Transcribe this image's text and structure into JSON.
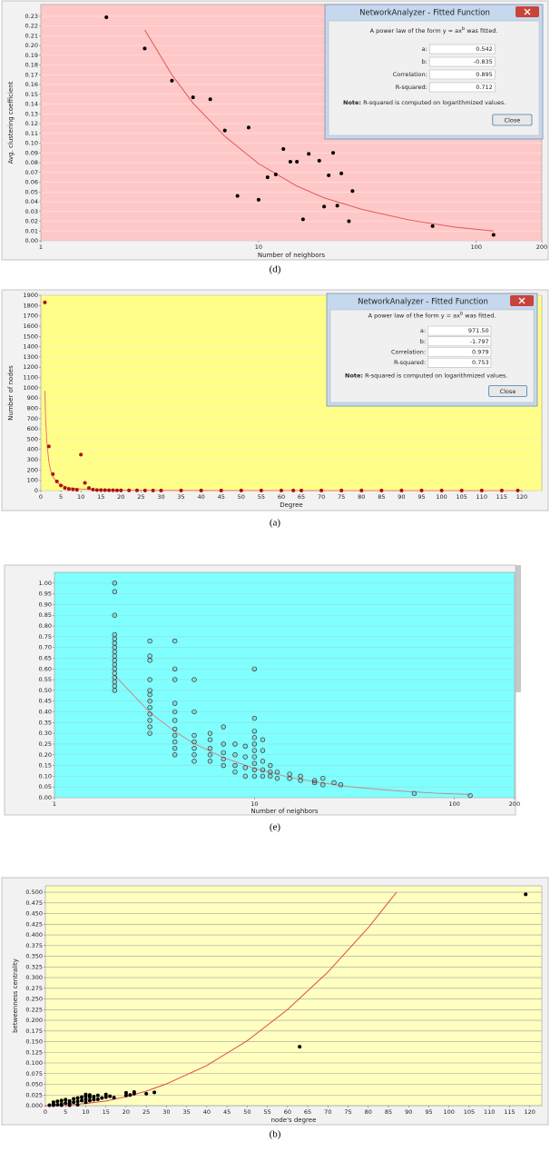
{
  "chart_data": [
    {
      "type": "scatter",
      "caption": "(d)",
      "x_label": "Number of neighbors",
      "y_label": "Avg. clustering coefficient",
      "xscale": "log",
      "xlim": [
        1,
        200
      ],
      "xticks": [
        1,
        10,
        100,
        200
      ],
      "ylim": [
        0,
        0.242
      ],
      "yticks": [
        {
          "value": 0,
          "label": "0.00"
        },
        0.01,
        0.02,
        0.03,
        0.04,
        0.05,
        0.06,
        0.07,
        0.08,
        0.09,
        {
          "value": 0.1,
          "label": "0.10"
        },
        0.11,
        0.12,
        0.13,
        0.14,
        0.15,
        0.16,
        0.17,
        0.18,
        0.19,
        {
          "value": 0.2,
          "label": "0.20"
        },
        0.21,
        0.22,
        0.23
      ],
      "grid": true,
      "grid_color": "#ffe4e4",
      "background": "#ffc8c8",
      "point_color": "#000000",
      "point_style": "filled",
      "points": {
        "x": [
          2,
          3,
          4,
          5,
          6,
          7,
          9,
          8,
          10,
          11,
          12,
          13,
          14,
          15,
          16,
          17,
          19,
          20,
          21,
          22,
          23,
          24,
          26,
          27,
          63,
          120
        ],
        "y": [
          0.229,
          0.197,
          0.164,
          0.147,
          0.145,
          0.113,
          0.116,
          0.046,
          0.042,
          0.065,
          0.068,
          0.094,
          0.081,
          0.081,
          0.022,
          0.089,
          0.082,
          0.035,
          0.067,
          0.09,
          0.036,
          0.069,
          0.02,
          0.051,
          0.015,
          0.006
        ]
      },
      "curve_color": "#e05858",
      "curve": {
        "x": [
          3,
          4,
          5,
          7,
          10,
          15,
          20,
          30,
          50,
          80,
          120
        ],
        "y": [
          0.216,
          0.17,
          0.141,
          0.107,
          0.079,
          0.056,
          0.044,
          0.032,
          0.021,
          0.014,
          0.01
        ]
      },
      "dialog": {
        "title": "NetworkAnalyzer - Fitted Function",
        "intro_before": "A power law of the form ",
        "formula": "y  =  ax",
        "formula_exp": "b",
        "intro_after": " was fitted.",
        "fields": [
          {
            "label": "a:",
            "value": 0.542
          },
          {
            "label": "b:",
            "value": -0.835
          },
          {
            "label": "Correlation:",
            "value": 0.895
          },
          {
            "label": "R-squared:",
            "value": 0.712
          }
        ],
        "note_label": "Note:",
        "note": " R-squared is computed on logarithmized values.",
        "button": "Close"
      }
    },
    {
      "type": "scatter",
      "caption": "(a)",
      "x_label": "Degree",
      "y_label": "Number of nodes",
      "xscale": "linear",
      "xlim": [
        0,
        125
      ],
      "xticks": [
        0,
        5,
        10,
        15,
        20,
        25,
        30,
        35,
        40,
        45,
        50,
        55,
        60,
        65,
        70,
        75,
        80,
        85,
        90,
        95,
        100,
        105,
        110,
        115,
        120
      ],
      "ylim": [
        0,
        1900
      ],
      "yticks": [
        0,
        100,
        200,
        300,
        400,
        500,
        600,
        700,
        800,
        900,
        1000,
        1100,
        1200,
        1300,
        1400,
        1500,
        1600,
        1700,
        1800,
        1900
      ],
      "grid": true,
      "grid_color": "#f4f4b0",
      "background": "#ffff88",
      "point_color": "#b01010",
      "point_style": "filled",
      "points": {
        "x": [
          1,
          2,
          3,
          4,
          5,
          6,
          7,
          8,
          9,
          10,
          11,
          12,
          13,
          14,
          15,
          16,
          17,
          18,
          19,
          20,
          22,
          24,
          26,
          28,
          30,
          35,
          40,
          45,
          50,
          55,
          60,
          63,
          65,
          70,
          75,
          80,
          85,
          90,
          95,
          100,
          105,
          110,
          115,
          119
        ],
        "y": [
          1830,
          430,
          160,
          90,
          50,
          25,
          15,
          12,
          8,
          350,
          75,
          25,
          10,
          6,
          5,
          4,
          3,
          3,
          2,
          2,
          2,
          2,
          1,
          1,
          1,
          1,
          1,
          1,
          1,
          1,
          1,
          1,
          1,
          1,
          1,
          1,
          1,
          1,
          1,
          1,
          1,
          1,
          1,
          1
        ]
      },
      "curve_color": "#f07070",
      "curve": {
        "x": [
          1,
          1.2,
          1.5,
          2,
          2.5,
          3,
          4,
          5,
          7,
          10,
          15,
          20,
          30,
          50,
          80,
          120
        ],
        "y": [
          971.5,
          700,
          469,
          280,
          187,
          135,
          80,
          54,
          29,
          15.5,
          7.5,
          4.5,
          2.2,
          0.9,
          0.4,
          0.2
        ]
      },
      "dialog": {
        "title": "NetworkAnalyzer - Fitted Function",
        "intro_before": "A power law of the form ",
        "formula": "y  =  ax",
        "formula_exp": "b",
        "intro_after": " was fitted.",
        "fields": [
          {
            "label": "a:",
            "value": {
              "value": 971.5,
              "label": "971.50"
            }
          },
          {
            "label": "b:",
            "value": -1.797
          },
          {
            "label": "Correlation:",
            "value": 0.979
          },
          {
            "label": "R-squared:",
            "value": 0.753
          }
        ],
        "note_label": "Note:",
        "note": " R-squared is computed on logarithmized values.",
        "button": "Close"
      }
    },
    {
      "type": "scatter",
      "caption": "(e)",
      "x_label": "Number of neighbors",
      "xscale": "log",
      "xlim": [
        1,
        200
      ],
      "xticks": [
        1,
        10,
        100,
        200
      ],
      "ylim": [
        0,
        1.05
      ],
      "yticks": [
        {
          "value": 0,
          "label": "0.00"
        },
        0.05,
        {
          "value": 0.1,
          "label": "0.10"
        },
        0.15,
        {
          "value": 0.2,
          "label": "0.20"
        },
        0.25,
        {
          "value": 0.3,
          "label": "0.30"
        },
        0.35,
        {
          "value": 0.4,
          "label": "0.40"
        },
        0.45,
        {
          "value": 0.5,
          "label": "0.50"
        },
        0.55,
        {
          "value": 0.6,
          "label": "0.60"
        },
        0.65,
        {
          "value": 0.7,
          "label": "0.70"
        },
        0.75,
        {
          "value": 0.8,
          "label": "0.80"
        },
        0.85,
        {
          "value": 0.9,
          "label": "0.90"
        },
        0.95,
        {
          "value": 1,
          "label": "1.00"
        }
      ],
      "grid": true,
      "grid_color": "#9ad8d8",
      "background": "#80ffff",
      "point_color": "#222222",
      "point_style": "open",
      "points": {
        "x": [
          2,
          2,
          2,
          2,
          2,
          2,
          2,
          2,
          2,
          2,
          2,
          2,
          2,
          2,
          2,
          2,
          2,
          3,
          3,
          3,
          3,
          3,
          3,
          3,
          3,
          3,
          3,
          3,
          3,
          4,
          4,
          4,
          4,
          4,
          4,
          4,
          4,
          4,
          4,
          4,
          5,
          5,
          5,
          5,
          5,
          5,
          5,
          6,
          6,
          6,
          6,
          6,
          7,
          7,
          7,
          7,
          7,
          8,
          8,
          8,
          8,
          9,
          9,
          9,
          9,
          10,
          10,
          10,
          10,
          10,
          10,
          10,
          10,
          10,
          10,
          11,
          11,
          11,
          11,
          11,
          12,
          12,
          12,
          13,
          13,
          15,
          15,
          17,
          17,
          20,
          20,
          22,
          22,
          25,
          27,
          63,
          120
        ],
        "y": [
          0.5,
          0.52,
          0.54,
          0.56,
          0.58,
          0.6,
          0.62,
          0.64,
          0.66,
          0.68,
          0.7,
          0.72,
          0.74,
          0.76,
          0.85,
          0.96,
          1,
          0.3,
          0.33,
          0.36,
          0.39,
          0.42,
          0.45,
          0.48,
          0.5,
          0.55,
          0.64,
          0.66,
          0.73,
          0.2,
          0.23,
          0.26,
          0.29,
          0.32,
          0.36,
          0.4,
          0.44,
          0.55,
          0.6,
          0.73,
          0.17,
          0.2,
          0.23,
          0.26,
          0.29,
          0.4,
          0.55,
          0.17,
          0.2,
          0.23,
          0.27,
          0.3,
          0.15,
          0.18,
          0.21,
          0.25,
          0.33,
          0.12,
          0.15,
          0.2,
          0.25,
          0.1,
          0.14,
          0.19,
          0.24,
          0.1,
          0.13,
          0.16,
          0.19,
          0.22,
          0.25,
          0.28,
          0.31,
          0.37,
          0.6,
          0.1,
          0.13,
          0.17,
          0.22,
          0.27,
          0.1,
          0.12,
          0.15,
          0.09,
          0.12,
          0.09,
          0.11,
          0.08,
          0.1,
          0.07,
          0.08,
          0.06,
          0.09,
          0.07,
          0.06,
          0.02,
          0.01
        ]
      },
      "curve_color": "#c88a8a",
      "curve": {
        "x": [
          2,
          3,
          4,
          5,
          7,
          10,
          15,
          20,
          30,
          50,
          80,
          120
        ],
        "y": [
          0.57,
          0.397,
          0.308,
          0.252,
          0.187,
          0.136,
          0.095,
          0.074,
          0.051,
          0.033,
          0.021,
          0.015
        ]
      }
    },
    {
      "type": "scatter",
      "caption": "(b)",
      "x_label": "node's degree",
      "y_label": "betweenness centrality",
      "xscale": "linear",
      "xlim": [
        0,
        123
      ],
      "xticks": [
        0,
        5,
        10,
        15,
        20,
        25,
        30,
        35,
        40,
        45,
        50,
        55,
        60,
        65,
        70,
        75,
        80,
        85,
        90,
        95,
        100,
        105,
        110,
        115,
        120
      ],
      "ylim": [
        0,
        0.515
      ],
      "yticks": [
        {
          "value": 0,
          "label": "0.000"
        },
        0.025,
        {
          "value": 0.05,
          "label": "0.050"
        },
        0.075,
        {
          "value": 0.1,
          "label": "0.100"
        },
        0.125,
        {
          "value": 0.15,
          "label": "0.150"
        },
        0.175,
        {
          "value": 0.2,
          "label": "0.200"
        },
        0.225,
        {
          "value": 0.25,
          "label": "0.250"
        },
        0.275,
        {
          "value": 0.3,
          "label": "0.300"
        },
        0.325,
        {
          "value": 0.35,
          "label": "0.350"
        },
        0.375,
        {
          "value": 0.4,
          "label": "0.400"
        },
        0.425,
        {
          "value": 0.45,
          "label": "0.450"
        },
        0.475,
        {
          "value": 0.5,
          "label": "0.500"
        }
      ],
      "grid": true,
      "grid_color": "#a0a0a0",
      "background": "#ffffc0",
      "point_color": "#000000",
      "point_style": "filled",
      "points": {
        "x": [
          1,
          2,
          2,
          2,
          3,
          3,
          4,
          4,
          4,
          5,
          5,
          6,
          6,
          6,
          7,
          7,
          8,
          8,
          8,
          9,
          9,
          10,
          10,
          10,
          10,
          11,
          11,
          11,
          12,
          12,
          13,
          13,
          14,
          15,
          15,
          16,
          17,
          20,
          20,
          21,
          22,
          22,
          25,
          27,
          63,
          119
        ],
        "y": [
          0.001,
          0.001,
          0.003,
          0.008,
          0.002,
          0.01,
          0.001,
          0.004,
          0.012,
          0.006,
          0.014,
          0.001,
          0.005,
          0.011,
          0.008,
          0.016,
          0.002,
          0.01,
          0.018,
          0.012,
          0.02,
          0.008,
          0.015,
          0.022,
          0.026,
          0.012,
          0.02,
          0.025,
          0.014,
          0.021,
          0.015,
          0.024,
          0.018,
          0.02,
          0.026,
          0.022,
          0.019,
          0.024,
          0.03,
          0.025,
          0.028,
          0.032,
          0.028,
          0.031,
          0.138,
          0.495
        ]
      },
      "curve_color": "#e04848",
      "curve": {
        "x": [
          0,
          5,
          10,
          15,
          20,
          25,
          30,
          40,
          50,
          60,
          70,
          80,
          87
        ],
        "y": [
          0,
          0.001,
          0.005,
          0.011,
          0.021,
          0.034,
          0.051,
          0.094,
          0.152,
          0.225,
          0.313,
          0.417,
          0.5
        ]
      }
    }
  ]
}
